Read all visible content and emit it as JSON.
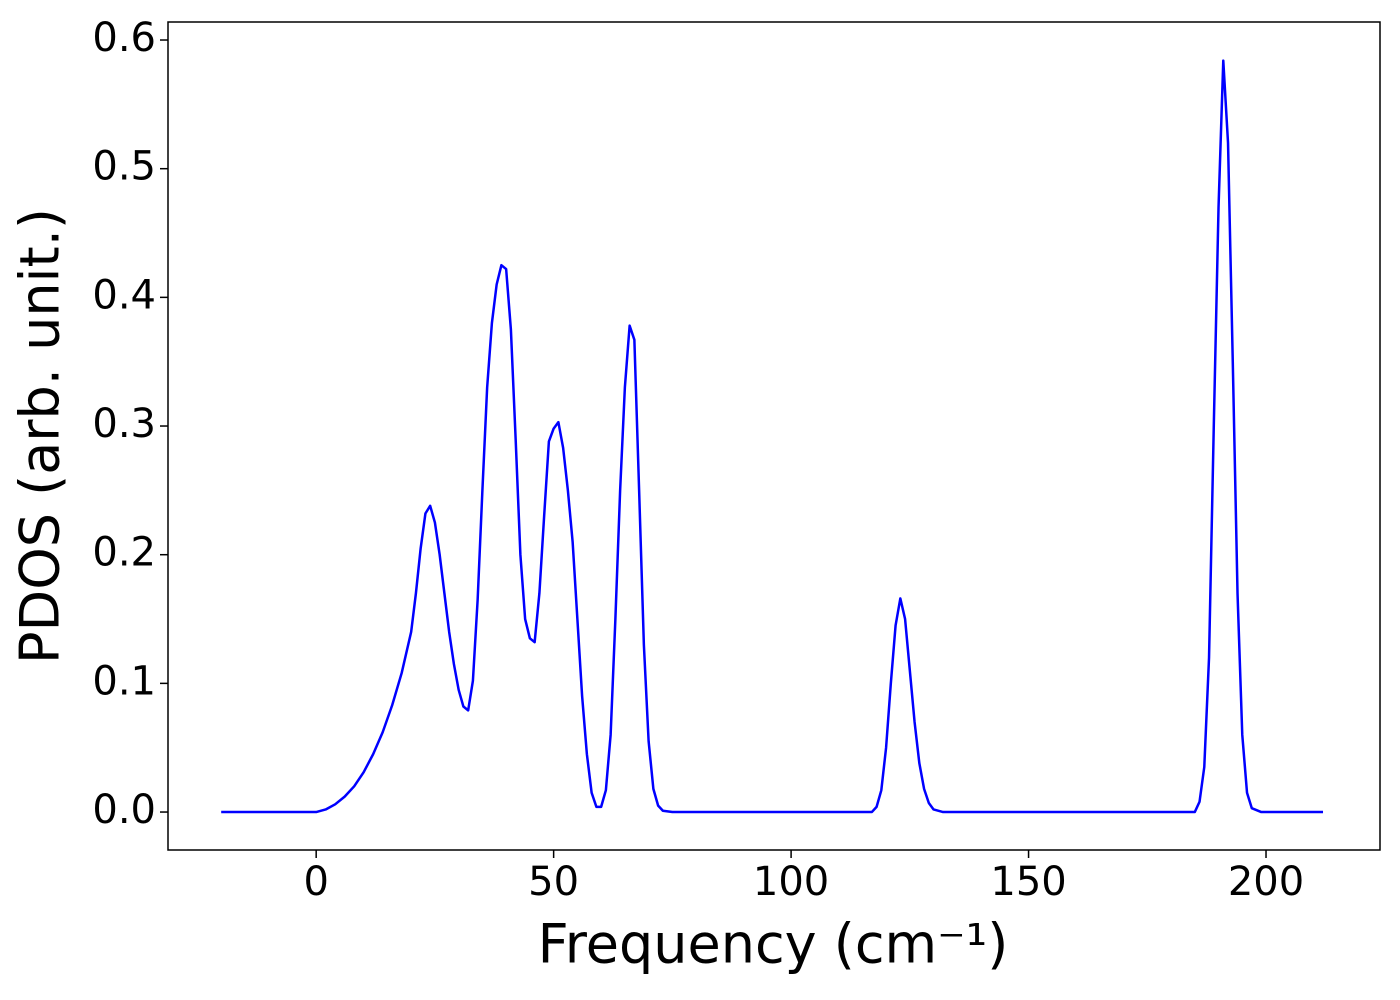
{
  "chart_data": {
    "type": "line",
    "xlabel": "Frequency (cm⁻¹)",
    "ylabel": "PDOS (arb. unit.)",
    "xlim": [
      -31.2,
      224
    ],
    "ylim": [
      -0.0295,
      0.614
    ],
    "xticks": [
      0,
      50,
      100,
      150,
      200
    ],
    "yticks": [
      {
        "value": 0,
        "label": "0.0"
      },
      0.1,
      0.2,
      0.3,
      0.4,
      0.5,
      0.6
    ],
    "grid": false,
    "series": [
      {
        "color": "#0000ff",
        "x": [
          -20,
          0,
          2,
          4,
          6,
          8,
          10,
          12,
          14,
          16,
          18,
          20,
          21,
          22,
          23,
          24,
          25,
          26,
          27,
          28,
          29,
          30,
          31,
          32,
          33,
          34,
          35,
          36,
          37,
          38,
          39,
          40,
          41,
          42,
          43,
          44,
          45,
          46,
          47,
          48,
          49,
          50,
          51,
          52,
          53,
          54,
          55,
          56,
          57,
          58,
          59,
          60,
          61,
          62,
          63,
          64,
          65,
          66,
          67,
          68,
          69,
          70,
          71,
          72,
          73,
          75,
          117,
          118,
          119,
          120,
          121,
          122,
          123,
          124,
          125,
          126,
          127,
          128,
          129,
          130,
          132,
          185,
          186,
          187,
          188,
          189,
          190,
          191,
          192,
          193,
          194,
          195,
          196,
          197,
          199,
          212
        ],
        "values": [
          0,
          0,
          0.002,
          0.006,
          0.012,
          0.02,
          0.031,
          0.045,
          0.062,
          0.083,
          0.108,
          0.14,
          0.17,
          0.205,
          0.232,
          0.238,
          0.225,
          0.2,
          0.17,
          0.14,
          0.115,
          0.095,
          0.082,
          0.079,
          0.102,
          0.165,
          0.25,
          0.33,
          0.38,
          0.41,
          0.425,
          0.422,
          0.375,
          0.29,
          0.2,
          0.15,
          0.135,
          0.132,
          0.17,
          0.23,
          0.288,
          0.298,
          0.303,
          0.283,
          0.25,
          0.21,
          0.15,
          0.09,
          0.045,
          0.015,
          0.004,
          0.004,
          0.017,
          0.06,
          0.15,
          0.25,
          0.33,
          0.378,
          0.367,
          0.25,
          0.13,
          0.055,
          0.018,
          0.005,
          0.001,
          0,
          0,
          0.004,
          0.017,
          0.05,
          0.1,
          0.145,
          0.166,
          0.15,
          0.11,
          0.07,
          0.038,
          0.018,
          0.007,
          0.002,
          0,
          0,
          0.008,
          0.035,
          0.12,
          0.3,
          0.47,
          0.584,
          0.52,
          0.35,
          0.17,
          0.06,
          0.015,
          0.003,
          0,
          0
        ]
      }
    ]
  }
}
